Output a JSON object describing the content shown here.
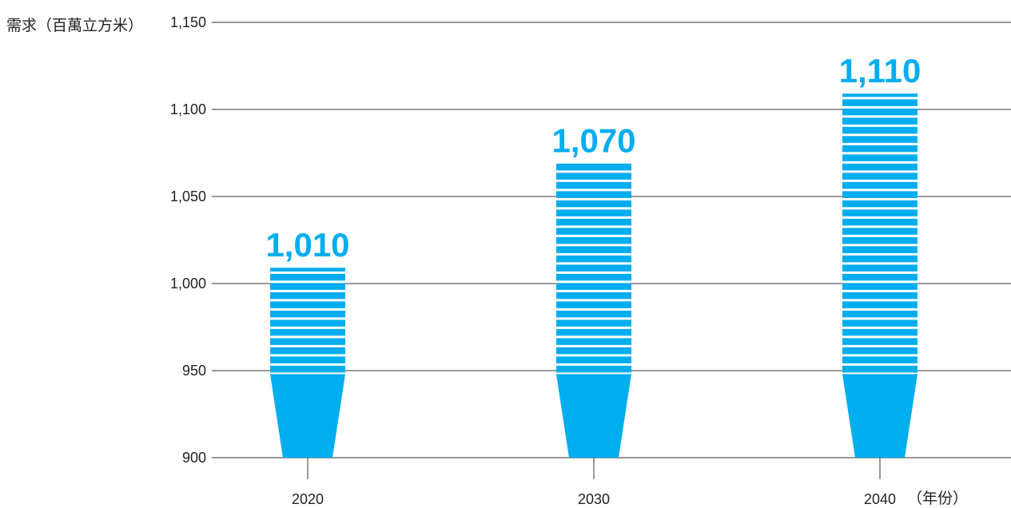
{
  "chart_data": {
    "type": "bar",
    "categories": [
      "2020",
      "2030",
      "2040"
    ],
    "values": [
      1010,
      1070,
      1110
    ],
    "value_labels": [
      "1,010",
      "1,070",
      "1,110"
    ],
    "ylabel": "需求（百萬立方米）",
    "xunit": "（年份）",
    "ylim": [
      900,
      1150
    ],
    "yticks": [
      900,
      950,
      1000,
      1050,
      1100,
      1150
    ],
    "ytick_labels": [
      "900",
      "950",
      "1,000",
      "1,050",
      "1,100",
      "1,150"
    ],
    "grid": true,
    "bar_color": "#00adef"
  }
}
